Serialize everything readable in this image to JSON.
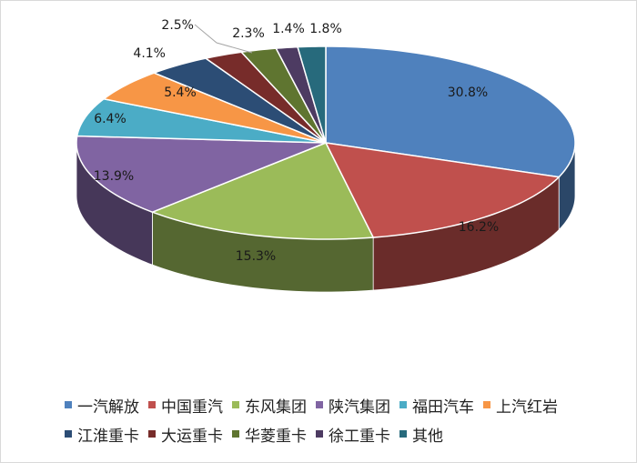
{
  "chart_data": {
    "type": "pie",
    "style": "3d-exploded-none",
    "legend_position": "bottom",
    "labels_format": "percent",
    "slices": [
      {
        "name": "一汽解放",
        "value": 30.8,
        "label": "30.8%",
        "color": "#4f81bd"
      },
      {
        "name": "中国重汽",
        "value": 16.2,
        "label": "16.2%",
        "color": "#c0504d"
      },
      {
        "name": "东风集团",
        "value": 15.3,
        "label": "15.3%",
        "color": "#9bbb59"
      },
      {
        "name": "陕汽集团",
        "value": 13.9,
        "label": "13.9%",
        "color": "#8064a2"
      },
      {
        "name": "福田汽车",
        "value": 6.4,
        "label": "6.4%",
        "color": "#4bacc6"
      },
      {
        "name": "上汽红岩",
        "value": 5.4,
        "label": "5.4%",
        "color": "#f79646"
      },
      {
        "name": "江淮重卡",
        "value": 4.1,
        "label": "4.1%",
        "color": "#2c4d75"
      },
      {
        "name": "大运重卡",
        "value": 2.5,
        "label": "2.5%",
        "color": "#772c2a"
      },
      {
        "name": "华菱重卡",
        "value": 2.3,
        "label": "2.3%",
        "color": "#5f7530"
      },
      {
        "name": "徐工重卡",
        "value": 1.4,
        "label": "1.4%",
        "color": "#4d3b62"
      },
      {
        "name": "其他",
        "value": 1.8,
        "label": "1.8%",
        "color": "#276a7c"
      }
    ]
  }
}
